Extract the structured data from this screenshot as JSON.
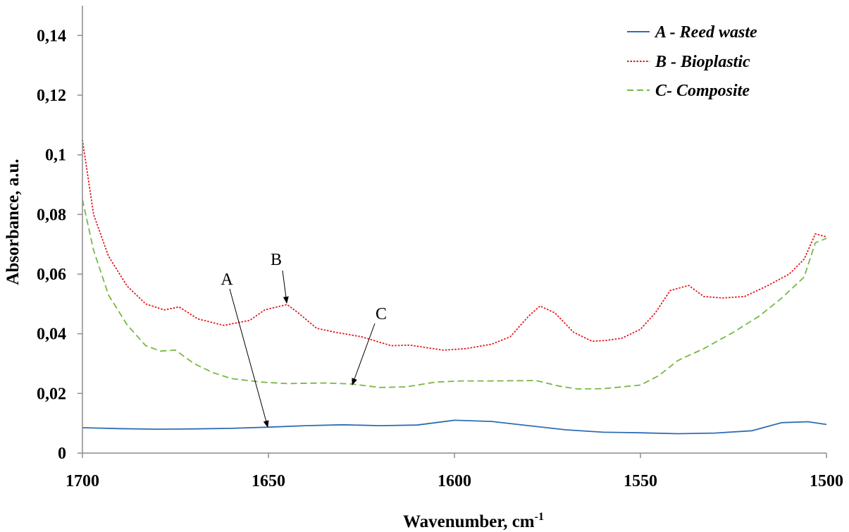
{
  "chart_data": {
    "type": "line",
    "xlabel": "Wavenumber, cm",
    "xlabel_superscript": "-1",
    "ylabel": "Absorbance, a.u.",
    "xlim": [
      1700,
      1500
    ],
    "ylim": [
      0,
      0.15
    ],
    "x_reversed": true,
    "grid": false,
    "legend_position": "top-right",
    "x_ticks": [
      {
        "value": 1700,
        "label": "1700"
      },
      {
        "value": 1650,
        "label": "1650"
      },
      {
        "value": 1600,
        "label": "1600"
      },
      {
        "value": 1550,
        "label": "1550"
      },
      {
        "value": 1500,
        "label": "1500"
      }
    ],
    "y_ticks": [
      {
        "value": 0,
        "label": "0"
      },
      {
        "value": 0.02,
        "label": "0,02"
      },
      {
        "value": 0.04,
        "label": "0,04"
      },
      {
        "value": 0.06,
        "label": "0,06"
      },
      {
        "value": 0.08,
        "label": "0,08"
      },
      {
        "value": 0.1,
        "label": "0,1"
      },
      {
        "value": 0.12,
        "label": "0,12"
      },
      {
        "value": 0.14,
        "label": "0,14"
      }
    ],
    "series": [
      {
        "name": "A - Reed waste",
        "color": "#2e6db5",
        "style": "solid",
        "points": [
          [
            1700,
            0.0085
          ],
          [
            1690,
            0.0082
          ],
          [
            1680,
            0.008
          ],
          [
            1670,
            0.0081
          ],
          [
            1660,
            0.0083
          ],
          [
            1650,
            0.0087
          ],
          [
            1640,
            0.0092
          ],
          [
            1630,
            0.0095
          ],
          [
            1620,
            0.0092
          ],
          [
            1610,
            0.0094
          ],
          [
            1600,
            0.011
          ],
          [
            1590,
            0.0106
          ],
          [
            1580,
            0.0092
          ],
          [
            1570,
            0.0078
          ],
          [
            1560,
            0.007
          ],
          [
            1550,
            0.0068
          ],
          [
            1540,
            0.0065
          ],
          [
            1530,
            0.0067
          ],
          [
            1520,
            0.0075
          ],
          [
            1512,
            0.0102
          ],
          [
            1505,
            0.0105
          ],
          [
            1500,
            0.0096
          ]
        ]
      },
      {
        "name": "B - Bioplastic",
        "color": "#e31a1c",
        "style": "dotted",
        "points": [
          [
            1700,
            0.105
          ],
          [
            1697,
            0.08
          ],
          [
            1693,
            0.066
          ],
          [
            1688,
            0.056
          ],
          [
            1683,
            0.05
          ],
          [
            1678,
            0.048
          ],
          [
            1674,
            0.049
          ],
          [
            1669,
            0.045
          ],
          [
            1662,
            0.0428
          ],
          [
            1655,
            0.0445
          ],
          [
            1651,
            0.048
          ],
          [
            1645,
            0.0498
          ],
          [
            1642,
            0.047
          ],
          [
            1637,
            0.0418
          ],
          [
            1632,
            0.0405
          ],
          [
            1625,
            0.039
          ],
          [
            1617,
            0.036
          ],
          [
            1612,
            0.0362
          ],
          [
            1603,
            0.0345
          ],
          [
            1597,
            0.035
          ],
          [
            1590,
            0.0365
          ],
          [
            1585,
            0.039
          ],
          [
            1580,
            0.046
          ],
          [
            1577,
            0.0493
          ],
          [
            1573,
            0.047
          ],
          [
            1568,
            0.0405
          ],
          [
            1563,
            0.0375
          ],
          [
            1559,
            0.0378
          ],
          [
            1555,
            0.0385
          ],
          [
            1550,
            0.0415
          ],
          [
            1546,
            0.047
          ],
          [
            1542,
            0.0545
          ],
          [
            1537,
            0.0562
          ],
          [
            1533,
            0.0525
          ],
          [
            1528,
            0.052
          ],
          [
            1522,
            0.0525
          ],
          [
            1516,
            0.056
          ],
          [
            1510,
            0.06
          ],
          [
            1506,
            0.065
          ],
          [
            1503,
            0.0735
          ],
          [
            1500,
            0.0725
          ]
        ]
      },
      {
        "name": "C- Composite",
        "color": "#77b843",
        "style": "dashed",
        "points": [
          [
            1700,
            0.085
          ],
          [
            1697,
            0.068
          ],
          [
            1693,
            0.053
          ],
          [
            1688,
            0.043
          ],
          [
            1683,
            0.036
          ],
          [
            1679,
            0.0342
          ],
          [
            1675,
            0.0345
          ],
          [
            1670,
            0.03
          ],
          [
            1665,
            0.027
          ],
          [
            1660,
            0.025
          ],
          [
            1652,
            0.0238
          ],
          [
            1645,
            0.0233
          ],
          [
            1635,
            0.0235
          ],
          [
            1628,
            0.0232
          ],
          [
            1620,
            0.022
          ],
          [
            1613,
            0.0222
          ],
          [
            1605,
            0.0238
          ],
          [
            1598,
            0.0242
          ],
          [
            1590,
            0.0242
          ],
          [
            1578,
            0.0243
          ],
          [
            1572,
            0.0225
          ],
          [
            1567,
            0.0215
          ],
          [
            1560,
            0.0216
          ],
          [
            1550,
            0.0228
          ],
          [
            1545,
            0.026
          ],
          [
            1540,
            0.031
          ],
          [
            1533,
            0.035
          ],
          [
            1525,
            0.0405
          ],
          [
            1518,
            0.046
          ],
          [
            1512,
            0.052
          ],
          [
            1506,
            0.059
          ],
          [
            1503,
            0.0705
          ],
          [
            1500,
            0.072
          ]
        ]
      }
    ],
    "annotations": [
      {
        "label": "A",
        "series": "A - Reed waste"
      },
      {
        "label": "B",
        "series": "B - Bioplastic"
      },
      {
        "label": "C",
        "series": "C- Composite"
      }
    ]
  }
}
